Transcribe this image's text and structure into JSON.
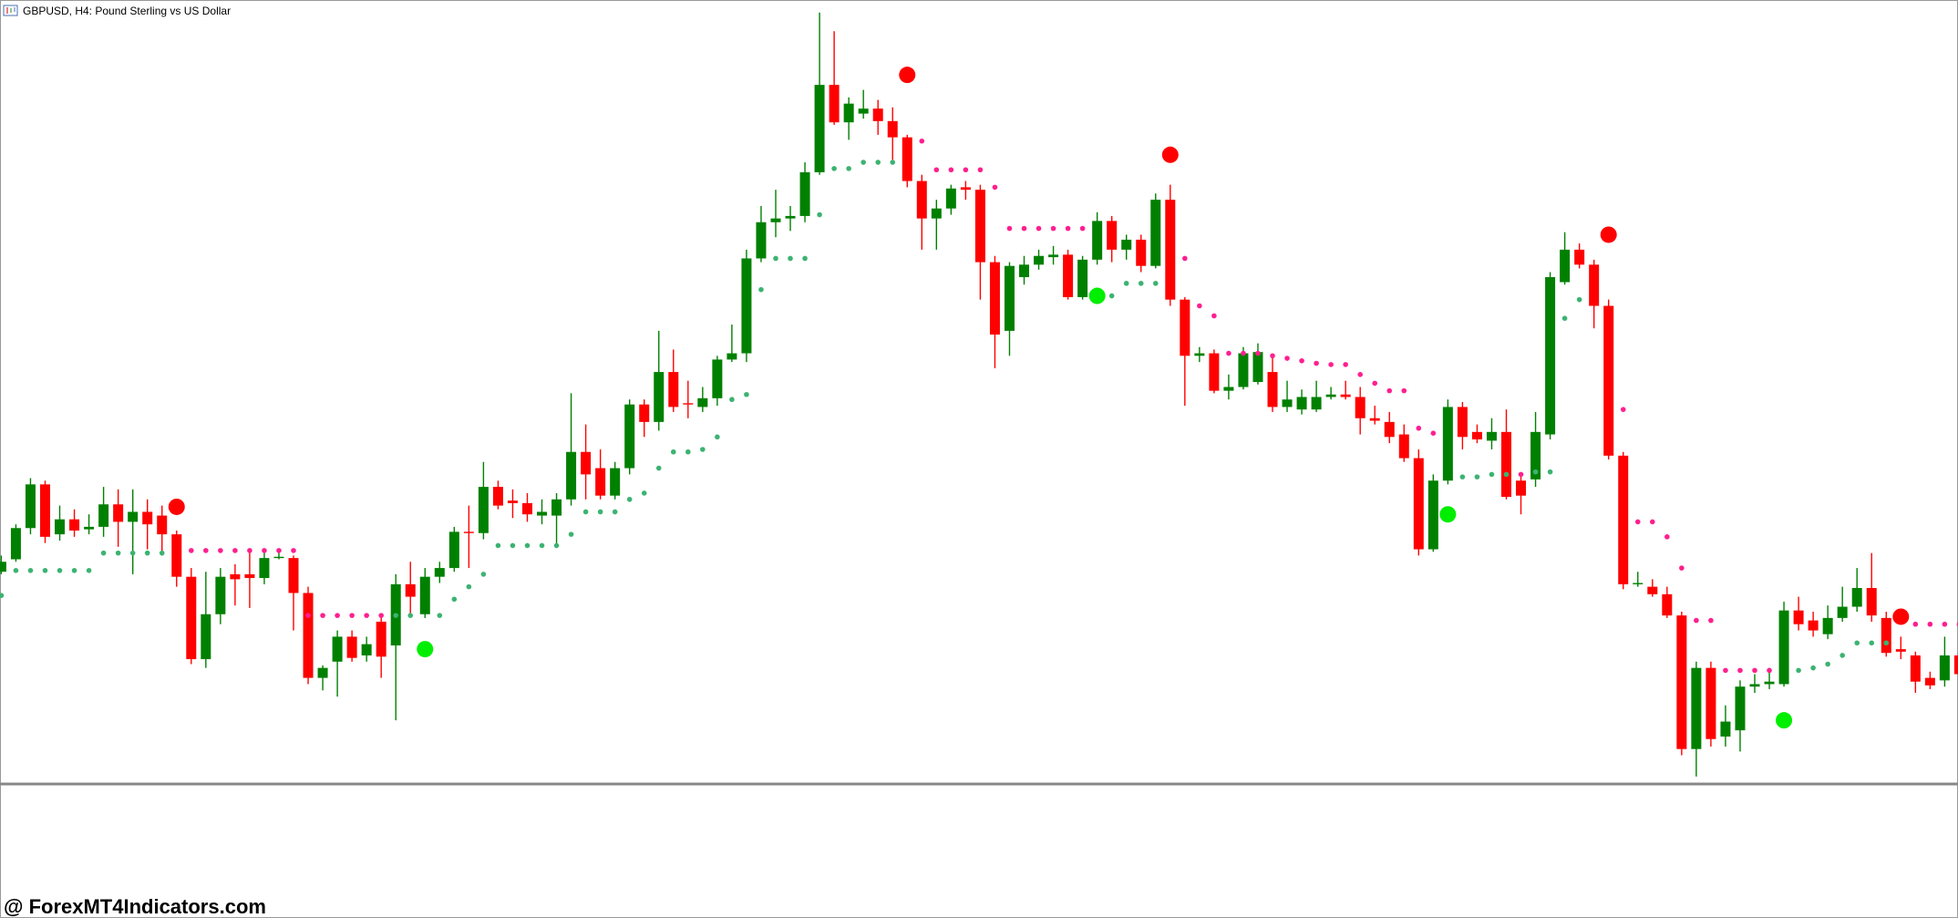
{
  "chart_data": {
    "type": "candlestick",
    "title": "GBPUSD, H4:  Pound Sterling vs US Dollar",
    "ylim": [
      0,
      628
    ],
    "up_color": "#008000",
    "down_color": "#ff0000",
    "open": [
      170,
      180,
      205,
      240,
      200,
      212,
      204,
      206,
      224,
      210,
      218,
      215,
      200,
      166,
      100,
      136,
      168,
      168,
      165,
      181,
      181,
      153,
      85,
      98,
      118,
      103,
      130,
      111,
      160,
      136,
      166,
      173,
      202,
      201,
      238,
      227,
      225,
      215,
      215,
      228,
      266,
      253,
      231,
      253,
      304,
      290,
      330,
      305,
      302,
      309,
      340,
      345,
      421,
      450,
      453,
      455,
      490,
      560,
      530,
      537,
      541,
      531,
      518,
      483,
      453,
      461,
      478,
      476,
      418,
      363,
      406,
      416,
      422,
      424,
      390,
      420,
      451,
      428,
      436,
      415,
      468,
      388,
      343,
      345,
      315,
      318,
      322,
      330,
      302,
      300,
      300,
      310,
      312,
      310,
      293,
      290,
      280,
      261,
      188,
      243,
      302,
      282,
      275,
      282,
      243,
      244,
      280,
      402,
      428,
      416,
      383,
      263,
      160,
      158,
      152,
      135,
      28,
      93,
      38,
      43,
      78,
      80,
      80,
      139,
      131,
      120,
      133,
      142,
      157,
      133,
      108,
      103,
      85,
      83,
      103
    ],
    "high": [
      183,
      208,
      245,
      243,
      223,
      220,
      216,
      238,
      236,
      236,
      228,
      223,
      203,
      173,
      170,
      173,
      176,
      188,
      188,
      188,
      183,
      158,
      95,
      123,
      123,
      118,
      135,
      168,
      178,
      173,
      178,
      206,
      223,
      258,
      243,
      236,
      233,
      228,
      233,
      313,
      288,
      268,
      258,
      308,
      308,
      363,
      348,
      323,
      318,
      343,
      368,
      428,
      463,
      476,
      463,
      498,
      618,
      603,
      550,
      556,
      548,
      542,
      520,
      488,
      468,
      480,
      483,
      480,
      423,
      418,
      423,
      428,
      431,
      428,
      423,
      458,
      455,
      440,
      440,
      473,
      480,
      390,
      350,
      348,
      328,
      350,
      353,
      343,
      323,
      316,
      323,
      318,
      323,
      318,
      303,
      298,
      288,
      268,
      248,
      308,
      306,
      288,
      293,
      300,
      248,
      298,
      410,
      442,
      433,
      420,
      388,
      266,
      170,
      164,
      158,
      138,
      98,
      98,
      63,
      83,
      88,
      93,
      146,
      150,
      138,
      143,
      158,
      173,
      185,
      138,
      118,
      106,
      90,
      118,
      128
    ],
    "low": [
      168,
      178,
      200,
      193,
      195,
      198,
      200,
      198,
      190,
      168,
      188,
      183,
      158,
      96,
      93,
      128,
      143,
      141,
      160,
      180,
      123,
      80,
      75,
      70,
      98,
      98,
      85,
      51,
      136,
      133,
      161,
      170,
      173,
      196,
      220,
      213,
      210,
      208,
      190,
      223,
      228,
      228,
      228,
      248,
      278,
      283,
      298,
      293,
      298,
      303,
      338,
      338,
      418,
      438,
      443,
      450,
      488,
      528,
      516,
      533,
      520,
      500,
      478,
      428,
      428,
      456,
      468,
      388,
      333,
      343,
      400,
      412,
      416,
      388,
      388,
      416,
      418,
      420,
      410,
      413,
      383,
      303,
      338,
      313,
      308,
      316,
      320,
      298,
      298,
      296,
      298,
      308,
      308,
      280,
      288,
      273,
      258,
      183,
      186,
      240,
      268,
      273,
      268,
      228,
      216,
      238,
      276,
      400,
      413,
      365,
      260,
      156,
      158,
      150,
      133,
      23,
      6,
      30,
      30,
      26,
      73,
      76,
      78,
      123,
      118,
      116,
      130,
      138,
      130,
      102,
      100,
      73,
      76,
      78,
      83
    ],
    "close": [
      178,
      205,
      240,
      198,
      212,
      203,
      206,
      224,
      210,
      218,
      208,
      200,
      166,
      100,
      136,
      166,
      164,
      165,
      181,
      182,
      153,
      85,
      93,
      118,
      101,
      112,
      102,
      160,
      150,
      166,
      173,
      202,
      201,
      238,
      223,
      225,
      216,
      218,
      228,
      266,
      248,
      231,
      253,
      304,
      290,
      330,
      302,
      304,
      309,
      340,
      345,
      421,
      450,
      453,
      455,
      490,
      560,
      530,
      545,
      541,
      531,
      518,
      483,
      453,
      461,
      477,
      476,
      418,
      360,
      415,
      416,
      423,
      424,
      390,
      420,
      451,
      428,
      436,
      415,
      468,
      388,
      343,
      345,
      315,
      318,
      345,
      346,
      302,
      308,
      310,
      310,
      312,
      310,
      293,
      291,
      278,
      261,
      188,
      243,
      302,
      278,
      276,
      282,
      230,
      231,
      282,
      406,
      428,
      416,
      383,
      263,
      160,
      161,
      152,
      135,
      28,
      93,
      36,
      50,
      78,
      80,
      82,
      139,
      128,
      123,
      133,
      142,
      157,
      135,
      105,
      106,
      82,
      79,
      103,
      88
    ],
    "sar": {
      "color_below": "#3cb371",
      "color_above": "#ff1f8f",
      "values": [
        151,
        171,
        171,
        171,
        171,
        171,
        171,
        185,
        185,
        185,
        185,
        185,
        null,
        187,
        187,
        187,
        187,
        187,
        187,
        187,
        187,
        135,
        135,
        135,
        135,
        135,
        135,
        135,
        135,
        null,
        135,
        148,
        158,
        168,
        191,
        191,
        191,
        191,
        191,
        200,
        218,
        218,
        218,
        228,
        233,
        253,
        266,
        266,
        268,
        278,
        308,
        312,
        396,
        421,
        421,
        421,
        456,
        493,
        493,
        498,
        498,
        498,
        null,
        515,
        492,
        492,
        492,
        492,
        478,
        445,
        445,
        445,
        445,
        445,
        445,
        null,
        391,
        401,
        401,
        401,
        null,
        421,
        383,
        375,
        345,
        345,
        345,
        343,
        341,
        339,
        337,
        336,
        336,
        328,
        321,
        315,
        315,
        285,
        281,
        null,
        246,
        246,
        248,
        248,
        248,
        250,
        250,
        373,
        388,
        null,
        null,
        300,
        210,
        210,
        198,
        173,
        131,
        131,
        91,
        91,
        91,
        91,
        null,
        91,
        93,
        96,
        103,
        113,
        113,
        113,
        null,
        128,
        128,
        128,
        128
      ]
    },
    "buy_signals": {
      "color": "#00ee00",
      "values": [
        null,
        null,
        null,
        null,
        null,
        null,
        null,
        null,
        null,
        null,
        null,
        null,
        null,
        null,
        null,
        null,
        null,
        null,
        null,
        null,
        null,
        null,
        null,
        null,
        null,
        null,
        null,
        null,
        null,
        108,
        null,
        null,
        null,
        null,
        null,
        null,
        null,
        null,
        null,
        null,
        null,
        null,
        null,
        null,
        null,
        null,
        null,
        null,
        null,
        null,
        null,
        null,
        null,
        null,
        null,
        null,
        null,
        null,
        null,
        null,
        null,
        null,
        null,
        null,
        null,
        null,
        null,
        null,
        null,
        null,
        null,
        null,
        null,
        null,
        null,
        391,
        null,
        null,
        null,
        null,
        null,
        null,
        null,
        null,
        null,
        null,
        null,
        null,
        null,
        null,
        null,
        null,
        null,
        null,
        null,
        null,
        null,
        null,
        null,
        216,
        null,
        null,
        null,
        null,
        null,
        null,
        null,
        null,
        null,
        null,
        null,
        null,
        null,
        null,
        null,
        null,
        null,
        null,
        null,
        null,
        null,
        null,
        51,
        null,
        null,
        null,
        null,
        null,
        null,
        null,
        null,
        null,
        null,
        null,
        null
      ]
    },
    "sell_signals": {
      "color": "#ff0000",
      "values": [
        null,
        null,
        null,
        null,
        null,
        null,
        null,
        null,
        null,
        null,
        null,
        null,
        222,
        null,
        null,
        null,
        null,
        null,
        null,
        null,
        null,
        null,
        null,
        null,
        null,
        null,
        null,
        null,
        null,
        null,
        null,
        null,
        null,
        null,
        null,
        null,
        null,
        null,
        null,
        null,
        null,
        null,
        null,
        null,
        null,
        null,
        null,
        null,
        null,
        null,
        null,
        null,
        null,
        null,
        null,
        null,
        null,
        null,
        null,
        null,
        null,
        null,
        568,
        null,
        null,
        null,
        null,
        null,
        null,
        null,
        null,
        null,
        null,
        null,
        null,
        null,
        null,
        null,
        null,
        null,
        504,
        null,
        null,
        null,
        null,
        null,
        null,
        null,
        null,
        null,
        null,
        null,
        null,
        null,
        null,
        null,
        null,
        null,
        null,
        null,
        null,
        null,
        null,
        null,
        null,
        null,
        null,
        null,
        null,
        null,
        440,
        null,
        null,
        null,
        null,
        null,
        null,
        null,
        null,
        null,
        null,
        null,
        null,
        null,
        null,
        null,
        null,
        null,
        null,
        null,
        134,
        null,
        null,
        null,
        null
      ]
    }
  },
  "watermark": "@ ForexMT4Indicators.com"
}
